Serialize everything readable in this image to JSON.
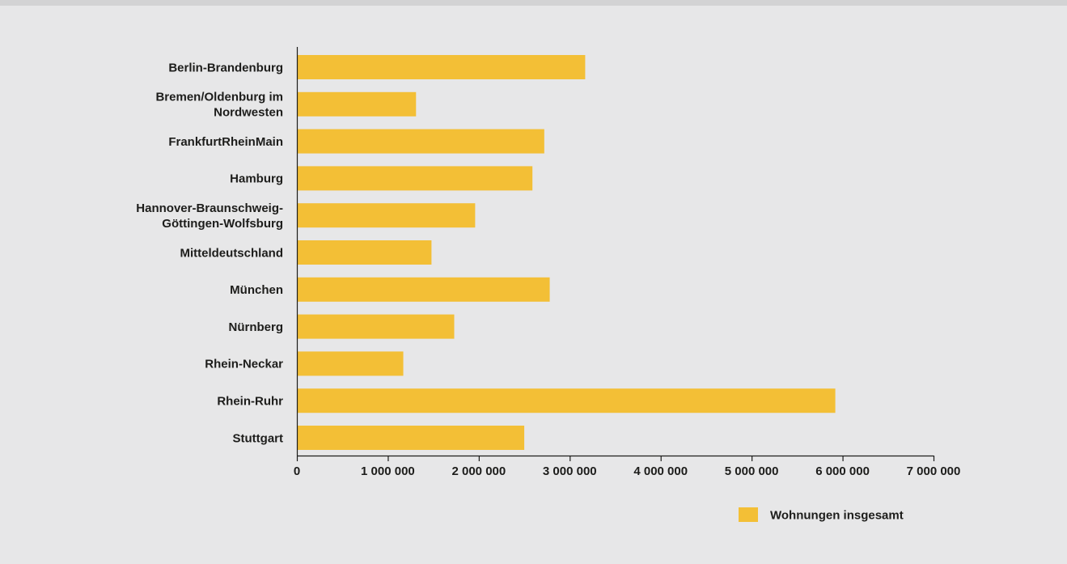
{
  "chart_data": {
    "type": "bar",
    "orientation": "horizontal",
    "categories": [
      "Berlin-Brandenburg",
      "Bremen/Oldenburg im Nordwesten",
      "FrankfurtRheinMain",
      "Hamburg",
      "Hannover-Braunschweig-Göttingen-Wolfsburg",
      "Mitteldeutschland",
      "München",
      "Nürnberg",
      "Rhein-Neckar",
      "Rhein-Ruhr",
      "Stuttgart"
    ],
    "category_label_lines": [
      [
        "Berlin-Brandenburg"
      ],
      [
        "Bremen/Oldenburg im",
        "Nordwesten"
      ],
      [
        "FrankfurtRheinMain"
      ],
      [
        "Hamburg"
      ],
      [
        "Hannover-Braunschweig-",
        "Göttingen-Wolfsburg"
      ],
      [
        "Mitteldeutschland"
      ],
      [
        "München"
      ],
      [
        "Nürnberg"
      ],
      [
        "Rhein-Neckar"
      ],
      [
        "Rhein-Ruhr"
      ],
      [
        "Stuttgart"
      ]
    ],
    "series": [
      {
        "name": "Wohnungen insgesamt",
        "color": "#f3bf36",
        "values": [
          3170000,
          1310000,
          2720000,
          2590000,
          1960000,
          1480000,
          2780000,
          1730000,
          1170000,
          5920000,
          2500000
        ]
      }
    ],
    "xlim": [
      0,
      7000000
    ],
    "xticks": [
      0,
      1000000,
      2000000,
      3000000,
      4000000,
      5000000,
      6000000,
      7000000
    ],
    "xtick_labels": [
      "0",
      "1 000 000",
      "2 000 000",
      "3 000 000",
      "4 000 000",
      "5 000 000",
      "6 000 000",
      "7 000 000"
    ],
    "grid": false,
    "legend": "bottom-right",
    "title": "",
    "xlabel": "",
    "ylabel": ""
  }
}
